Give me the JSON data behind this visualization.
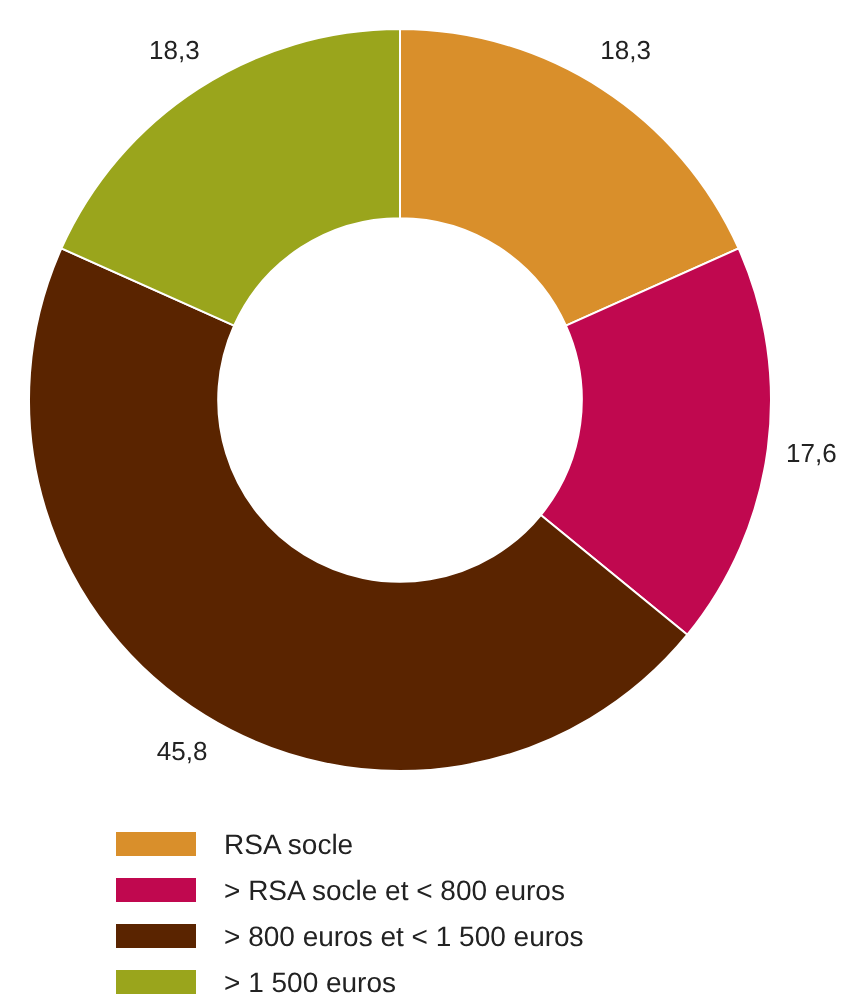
{
  "chart_data": {
    "type": "donut",
    "categories": [
      "RSA socle",
      "> RSA socle et < 800 euros",
      "> 800 euros et < 1 500 euros",
      "> 1 500 euros"
    ],
    "values": [
      18.3,
      17.6,
      45.8,
      18.3
    ],
    "colors": [
      "#d98f2b",
      "#c0084f",
      "#5a2400",
      "#9aa51c"
    ],
    "value_labels": [
      "18,3",
      "17,6",
      "45,8",
      "18,3"
    ],
    "legend": "bottom left"
  }
}
